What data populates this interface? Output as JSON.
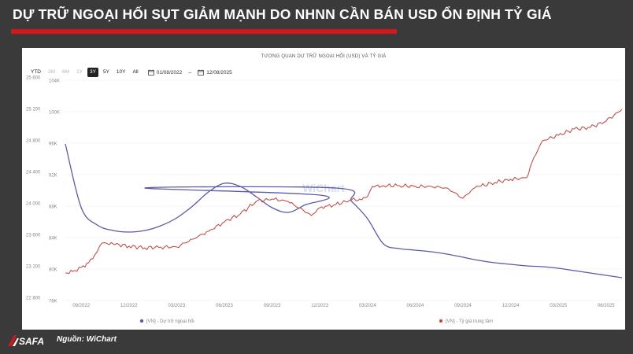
{
  "header": {
    "title": "DỰ TRỮ NGOẠI HỐI SỤT GIẢM MẠNH DO NHNN CẦN BÁN USD ỔN ĐỊNH TỶ GIÁ"
  },
  "toolbar": {
    "ranges": [
      "YTD",
      "3M",
      "6M",
      "1Y",
      "3Y",
      "5Y",
      "10Y",
      "All"
    ],
    "active_range": "3Y",
    "date_from": "01/08/2022",
    "date_to": "12/08/2025",
    "separator": "–"
  },
  "footer": {
    "logo_text": "SAFA",
    "source": "Nguồn: WiChart"
  },
  "colors": {
    "reserves": "#5b5aa6",
    "exchange_rate": "#c0504d",
    "headline_bar": "#d2161e"
  },
  "chart_data": {
    "type": "line",
    "title": "TƯƠNG QUAN DỰ TRỮ NGOẠI HỐI (USD) VÀ TỶ GIÁ",
    "watermark": "WiChart",
    "x_tick_labels": [
      "09/2022",
      "12/2022",
      "03/2023",
      "06/2023",
      "09/2023",
      "12/2023",
      "03/2024",
      "06/2024",
      "09/2024",
      "12/2024",
      "03/2025",
      "06/2025"
    ],
    "x_start": "2022-08",
    "x_end": "2025-07",
    "y_left": {
      "ticks": [
        "76K",
        "80K",
        "84K",
        "88K",
        "92K",
        "96K",
        "100K",
        "104K"
      ],
      "range": [
        76000,
        104000
      ]
    },
    "y_right": {
      "ticks": [
        "22 800",
        "23 200",
        "23 600",
        "24 000",
        "24 400",
        "24 800",
        "25 200",
        "25 600"
      ],
      "range": [
        22800,
        25600
      ]
    },
    "grid": true,
    "legend_position": "bottom",
    "series": [
      {
        "name": "[VN] - Dự trữ ngoại hối",
        "axis": "left",
        "x": [
          "2022-08",
          "2022-09",
          "2022-10",
          "2022-11",
          "2022-12",
          "2023-01",
          "2023-02",
          "2023-03",
          "2023-04",
          "2023-05",
          "2023-06",
          "2023-07",
          "2023-08",
          "2023-09",
          "2023-10",
          "2023-11",
          "2023-12",
          "2023-01",
          "2024-01",
          "2024-02",
          "2024-03",
          "2024-04",
          "2024-05",
          "2024-06",
          "2024-07",
          "2024-08",
          "2024-09",
          "2024-10",
          "2024-11",
          "2024-12",
          "2025-01",
          "2025-02",
          "2025-03",
          "2025-04",
          "2025-05",
          "2025-06",
          "2025-07"
        ],
        "values": [
          95900,
          87800,
          85600,
          84900,
          84700,
          84900,
          85500,
          86500,
          88000,
          89800,
          90900,
          90500,
          89200,
          87800,
          87200,
          88100,
          89400,
          90300,
          90300,
          88600,
          86400,
          83200,
          82600,
          82400,
          82200,
          81900,
          81500,
          81100,
          80800,
          80600,
          80400,
          80300,
          80100,
          79800,
          79500,
          79200,
          78900
        ]
      },
      {
        "name": "[VN] - Tỷ giá trung tâm",
        "axis": "right",
        "x": [
          "2022-08",
          "2022-08-15",
          "2022-09",
          "2022-09-15",
          "2022-10",
          "2022-10-10",
          "2022-11",
          "2022-12",
          "2023-01",
          "2023-02",
          "2023-03",
          "2023-04",
          "2023-05",
          "2023-06",
          "2023-07",
          "2023-08",
          "2023-09",
          "2023-10",
          "2023-11",
          "2023-11-15",
          "2023-12",
          "2023-12-15",
          "2024-01",
          "2024-02",
          "2024-02-20",
          "2024-03",
          "2024-03-10",
          "2024-04",
          "2024-05",
          "2024-06",
          "2024-07",
          "2024-08",
          "2024-09",
          "2024-09-20",
          "2024-10",
          "2024-11",
          "2024-12",
          "2025-01",
          "2025-01-15",
          "2025-02",
          "2025-03",
          "2025-04",
          "2025-05",
          "2025-06",
          "2025-07"
        ],
        "values": [
          23150,
          23170,
          23220,
          23280,
          23420,
          23530,
          23520,
          23490,
          23470,
          23480,
          23480,
          23580,
          23680,
          23800,
          23900,
          24060,
          24090,
          24060,
          23940,
          23880,
          23980,
          24000,
          24020,
          24080,
          24080,
          24120,
          24250,
          24260,
          24260,
          24250,
          24250,
          24230,
          24100,
          24220,
          24250,
          24300,
          24340,
          24360,
          24620,
          24830,
          24900,
          24980,
          25000,
          25080,
          25230
        ]
      }
    ]
  }
}
